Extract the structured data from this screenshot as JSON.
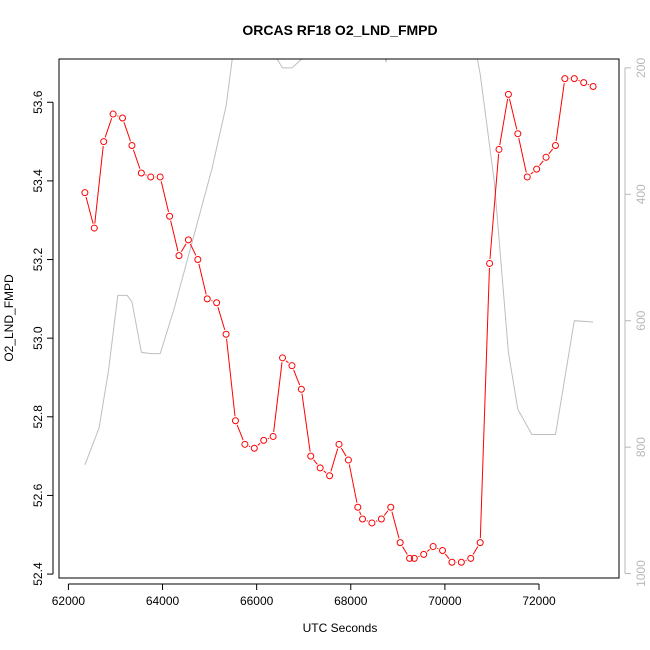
{
  "chart_data": {
    "type": "line",
    "title": "ORCAS RF18 O2_LND_FMPD",
    "xlabel": "UTC Seconds",
    "ylabel": "O2_LND_FMPD",
    "xlim": [
      61800,
      73700
    ],
    "ylim": [
      52.39,
      53.71
    ],
    "y2lim": [
      1007,
      186
    ],
    "x_ticks": [
      62000,
      64000,
      66000,
      68000,
      70000,
      72000
    ],
    "y_ticks": [
      52.4,
      52.6,
      52.8,
      53.0,
      53.2,
      53.4,
      53.6
    ],
    "y2_ticks": [
      200,
      400,
      600,
      800,
      1000
    ],
    "x_tick_labels": [
      "62000",
      "64000",
      "66000",
      "68000",
      "70000",
      "72000"
    ],
    "y_tick_labels": [
      "52.4",
      "52.6",
      "52.8",
      "53.0",
      "53.2",
      "53.4",
      "53.6"
    ],
    "y2_tick_labels": [
      "200",
      "400",
      "600",
      "800",
      "1000"
    ],
    "colors": {
      "primary": "#ff0000",
      "secondary": "#bebebe"
    },
    "series": [
      {
        "axis": "left",
        "style": "line+points",
        "color": "#ff0000",
        "x": [
          62350,
          62550,
          62750,
          62950,
          63150,
          63350,
          63550,
          63750,
          63950,
          64150,
          64350,
          64550,
          64750,
          64950,
          65150,
          65350,
          65550,
          65750,
          65950,
          66150,
          66350,
          66550,
          66750,
          66950,
          67150,
          67350,
          67550,
          67750,
          67950,
          68150,
          68250,
          68450,
          68650,
          68850,
          69050,
          69250,
          69350,
          69550,
          69750,
          69950,
          70150,
          70350,
          70550,
          70750,
          70950,
          71150,
          71350,
          71550,
          71750,
          71950,
          72150,
          72350,
          72550,
          72750,
          72950,
          73150
        ],
        "y": [
          53.37,
          53.28,
          53.5,
          53.57,
          53.56,
          53.49,
          53.42,
          53.41,
          53.41,
          53.31,
          53.21,
          53.25,
          53.2,
          53.1,
          53.09,
          53.01,
          52.79,
          52.73,
          52.72,
          52.74,
          52.75,
          52.95,
          52.93,
          52.87,
          52.7,
          52.67,
          52.65,
          52.73,
          52.69,
          52.57,
          52.54,
          52.53,
          52.54,
          52.57,
          52.48,
          52.44,
          52.44,
          52.45,
          52.47,
          52.46,
          52.43,
          52.43,
          52.44,
          52.48,
          53.19,
          53.48,
          53.62,
          53.52,
          53.41,
          53.43,
          53.46,
          53.49,
          53.66,
          53.66,
          53.65,
          53.64
        ]
      },
      {
        "axis": "right",
        "style": "line",
        "color": "#bebebe",
        "x": [
          62350,
          62650,
          62850,
          63050,
          63250,
          63350,
          63550,
          63750,
          63950,
          64250,
          64650,
          65050,
          65350,
          65650,
          66550,
          66750,
          67050,
          67350,
          67750,
          68150,
          68350,
          68650,
          68750,
          68850,
          69050,
          69350,
          69550,
          69750,
          70050,
          70350,
          70650,
          70750,
          71050,
          71350,
          71550,
          71850,
          72150,
          72350,
          72550,
          72750,
          73150
        ],
        "y": [
          828,
          770,
          680,
          560,
          560,
          570,
          650,
          652,
          652,
          580,
          470,
          360,
          260,
          90,
          200,
          200,
          180,
          170,
          170,
          170,
          165,
          170,
          190,
          170,
          175,
          170,
          150,
          140,
          165,
          160,
          170,
          210,
          380,
          650,
          740,
          780,
          780,
          780,
          690,
          600,
          602
        ]
      }
    ]
  }
}
